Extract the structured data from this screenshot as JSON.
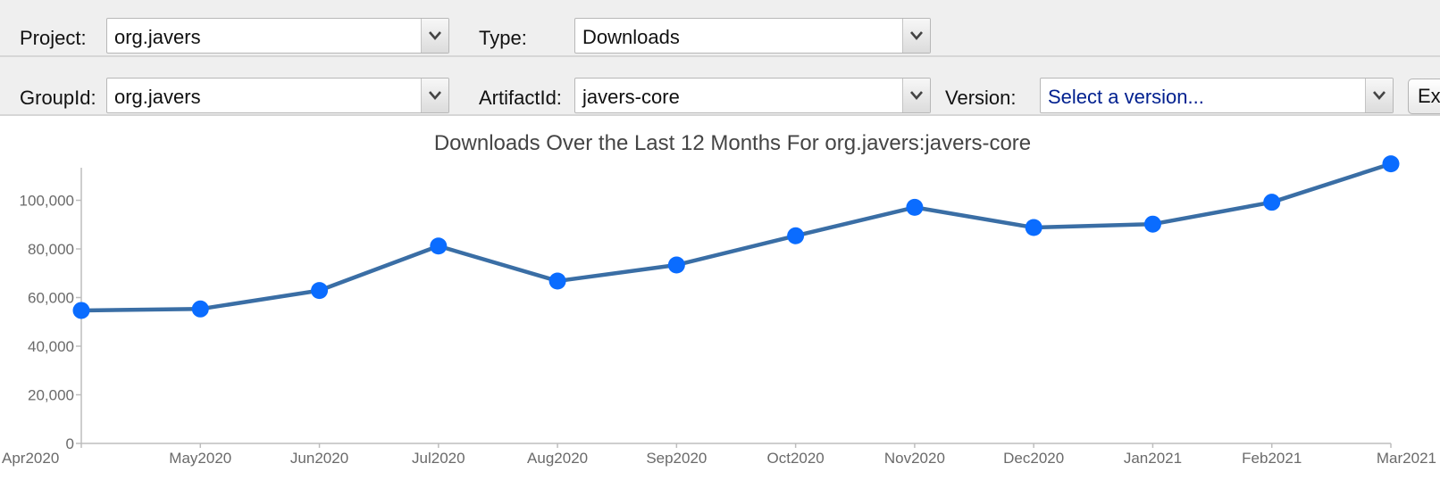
{
  "toolbar1": {
    "project_label": "Project:",
    "project_value": "org.javers",
    "type_label": "Type:",
    "type_value": "Downloads"
  },
  "toolbar2": {
    "groupid_label": "GroupId:",
    "groupid_value": "org.javers",
    "artifactid_label": "ArtifactId:",
    "artifactid_value": "javers-core",
    "version_label": "Version:",
    "version_placeholder": "Select a version...",
    "export_label": "Exp"
  },
  "colors": {
    "line": "#3a6ea5",
    "marker": "#0a6cff",
    "placeholder_text": "#00208f"
  },
  "icons": {
    "dropdown": "chevron-down-icon"
  },
  "chart_data": {
    "type": "line",
    "title": "Downloads Over the Last 12 Months For org.javers:javers-core",
    "xlabel": "",
    "ylabel": "",
    "categories": [
      "Apr2020",
      "May2020",
      "Jun2020",
      "Jul2020",
      "Aug2020",
      "Sep2020",
      "Oct2020",
      "Nov2020",
      "Dec2020",
      "Jan2021",
      "Feb2021",
      "Mar2021"
    ],
    "series": [
      {
        "values": [
          54700,
          55300,
          62900,
          81200,
          66800,
          73400,
          85400,
          97100,
          88800,
          90200,
          99200,
          115000
        ]
      }
    ],
    "ylim": [
      0,
      120000
    ],
    "yticks": [
      0,
      20000,
      40000,
      60000,
      80000,
      100000
    ],
    "ytick_labels": [
      "0",
      "20,000",
      "40,000",
      "60,000",
      "80,000",
      "100,000"
    ],
    "grid": false,
    "legend": "none"
  }
}
